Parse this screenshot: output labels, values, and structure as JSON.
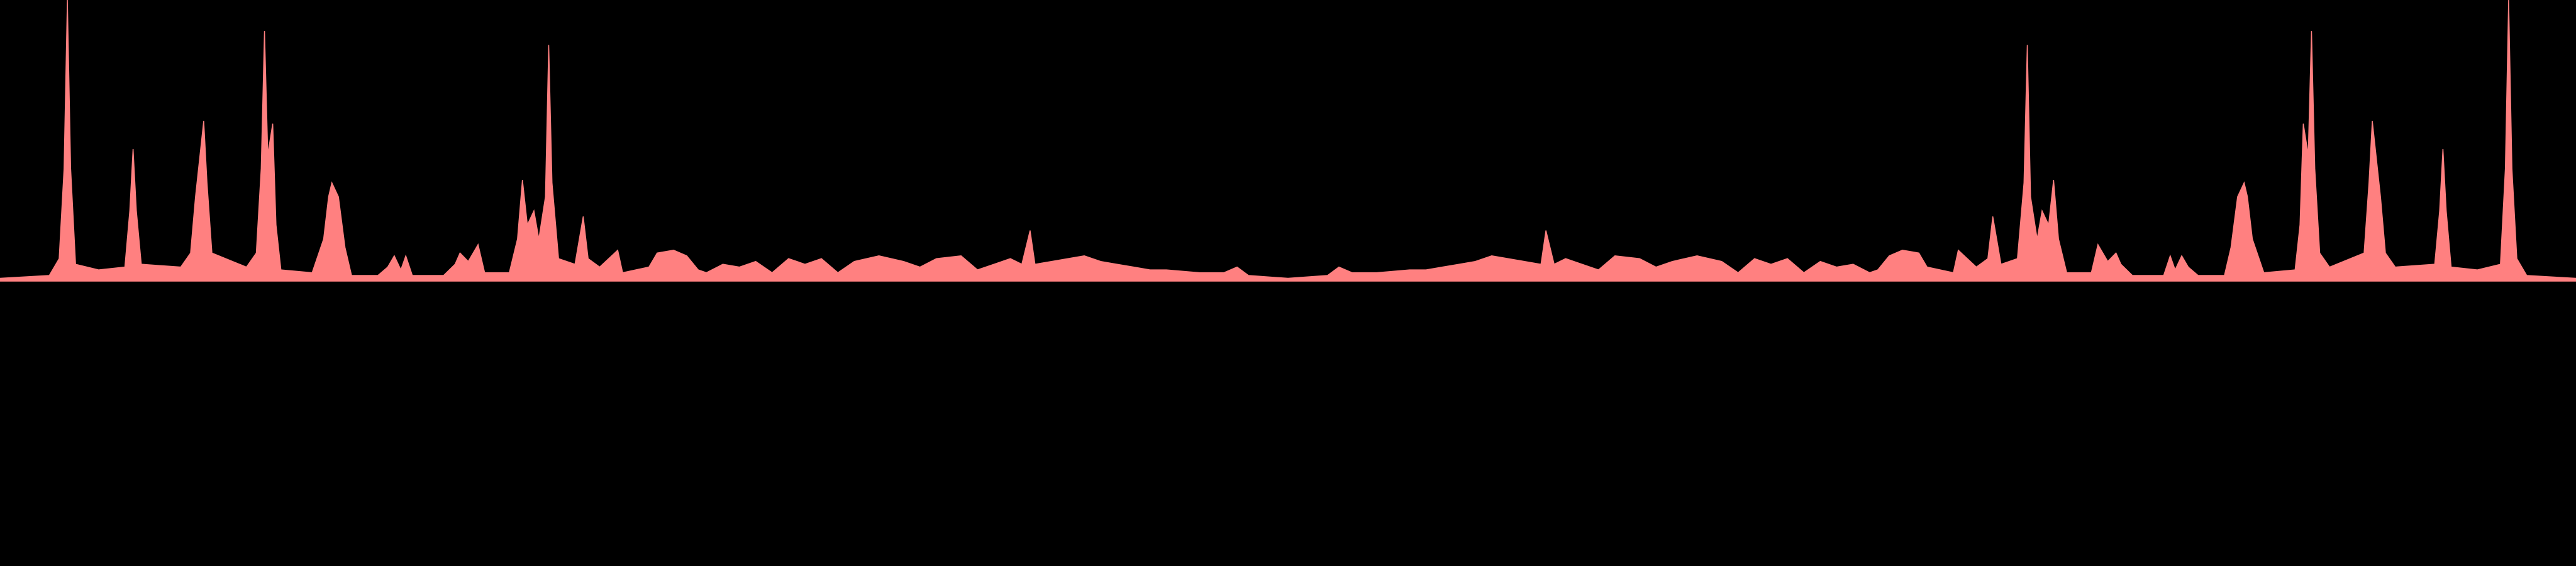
{
  "chart_data": {
    "type": "area",
    "color": "#ff8080",
    "xlim": [
      0,
      1568
    ],
    "ylim": [
      0,
      100
    ],
    "x": [
      0,
      30,
      36,
      39,
      41,
      43,
      46,
      60,
      76,
      79,
      81,
      83,
      86,
      110,
      116,
      119,
      124,
      126,
      129,
      150,
      156,
      159,
      161,
      163,
      166,
      168,
      171,
      190,
      197,
      200,
      202,
      206,
      210,
      214,
      230,
      236,
      240,
      244,
      247,
      251,
      270,
      277,
      280,
      285,
      291,
      295,
      310,
      315,
      318,
      321,
      325,
      328,
      332,
      334,
      336,
      340,
      350,
      355,
      358,
      365,
      376,
      379,
      395,
      400,
      410,
      418,
      425,
      430,
      440,
      450,
      460,
      470,
      480,
      490,
      500,
      510,
      520,
      535,
      550,
      560,
      570,
      585,
      595,
      605,
      615,
      622,
      627,
      630,
      640,
      650,
      660,
      670,
      680,
      690,
      700,
      710,
      730,
      745,
      753,
      760,
      784,
      808,
      815,
      823,
      838,
      858,
      868,
      878,
      888,
      898,
      908,
      918,
      928,
      938,
      941,
      946,
      953,
      963,
      973,
      983,
      998,
      1008,
      1018,
      1033,
      1048,
      1058,
      1068,
      1078,
      1088,
      1098,
      1108,
      1118,
      1128,
      1138,
      1143,
      1150,
      1158,
      1168,
      1173,
      1189,
      1192,
      1203,
      1210,
      1213,
      1218,
      1228,
      1232,
      1234,
      1236,
      1240,
      1243,
      1247,
      1250,
      1253,
      1258,
      1273,
      1277,
      1283,
      1288,
      1291,
      1298,
      1317,
      1321,
      1324,
      1328,
      1332,
      1338,
      1354,
      1358,
      1362,
      1366,
      1368,
      1371,
      1378,
      1397,
      1400,
      1402,
      1405,
      1407,
      1409,
      1412,
      1418,
      1439,
      1442,
      1444,
      1449,
      1452,
      1458,
      1482,
      1485,
      1487,
      1489,
      1492,
      1508,
      1522,
      1525,
      1527,
      1529,
      1532,
      1538,
      1568
    ],
    "values": [
      1,
      2,
      8,
      40,
      100,
      40,
      6,
      4,
      5,
      25,
      47,
      25,
      6,
      5,
      10,
      30,
      57,
      35,
      10,
      5,
      10,
      40,
      89,
      45,
      56,
      20,
      4,
      3,
      15,
      30,
      35,
      30,
      12,
      2,
      2,
      5,
      9,
      4,
      9,
      2,
      2,
      6,
      10,
      7,
      13,
      3,
      3,
      15,
      36,
      20,
      25,
      15,
      30,
      84,
      35,
      8,
      6,
      23,
      8,
      5,
      11,
      3,
      5,
      10,
      11,
      9,
      4,
      3,
      6,
      5,
      7,
      3,
      8,
      6,
      8,
      3,
      7,
      9,
      7,
      5,
      8,
      9,
      4,
      6,
      8,
      6,
      18,
      6,
      7,
      8,
      9,
      7,
      6,
      5,
      4,
      4,
      3,
      3,
      5,
      2,
      1,
      2,
      5,
      3,
      3,
      4,
      4,
      5,
      6,
      7,
      9,
      8,
      7,
      6,
      18,
      6,
      8,
      6,
      4,
      9,
      8,
      5,
      7,
      9,
      7,
      3,
      8,
      6,
      8,
      3,
      7,
      5,
      6,
      3,
      4,
      9,
      11,
      10,
      5,
      3,
      11,
      5,
      8,
      23,
      6,
      8,
      35,
      84,
      30,
      15,
      25,
      20,
      36,
      15,
      3,
      3,
      13,
      7,
      10,
      6,
      2,
      2,
      9,
      4,
      9,
      5,
      2,
      2,
      12,
      30,
      35,
      30,
      15,
      3,
      4,
      20,
      56,
      45,
      89,
      40,
      10,
      5,
      10,
      35,
      57,
      30,
      10,
      5,
      6,
      25,
      47,
      25,
      5,
      4,
      6,
      40,
      100,
      40,
      8,
      2,
      1
    ]
  }
}
